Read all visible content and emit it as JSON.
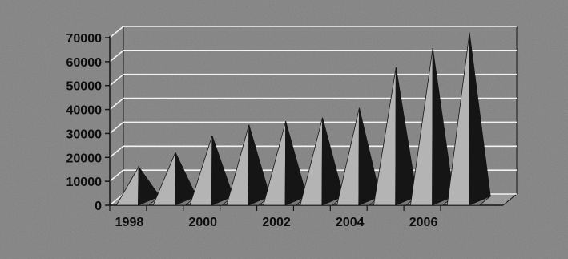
{
  "chart_data": {
    "type": "bar",
    "style": "3d-pyramid",
    "title": "",
    "xlabel": "",
    "ylabel": "",
    "ylim": [
      0,
      70000
    ],
    "yticks": [
      0,
      10000,
      20000,
      30000,
      40000,
      50000,
      60000,
      70000
    ],
    "ytick_labels": [
      "0",
      "10000",
      "20000",
      "30000",
      "40000",
      "50000",
      "60000",
      "70000"
    ],
    "xtick_labels": [
      "1998",
      "2000",
      "2002",
      "2004",
      "2006"
    ],
    "categories": [
      "1998",
      "1999",
      "2000",
      "2001",
      "2002",
      "2003",
      "2004",
      "2005",
      "2006",
      "2007"
    ],
    "values": [
      14000,
      20000,
      27000,
      31500,
      33000,
      34500,
      38500,
      55500,
      63500,
      70000
    ],
    "grid": true,
    "legend": "none"
  },
  "colors": {
    "background": "#8f8f8f",
    "light_face": "#b4b4b4",
    "dark_face": "#151515",
    "grid": "#f2f2f2",
    "text": "#0d0d0d"
  }
}
